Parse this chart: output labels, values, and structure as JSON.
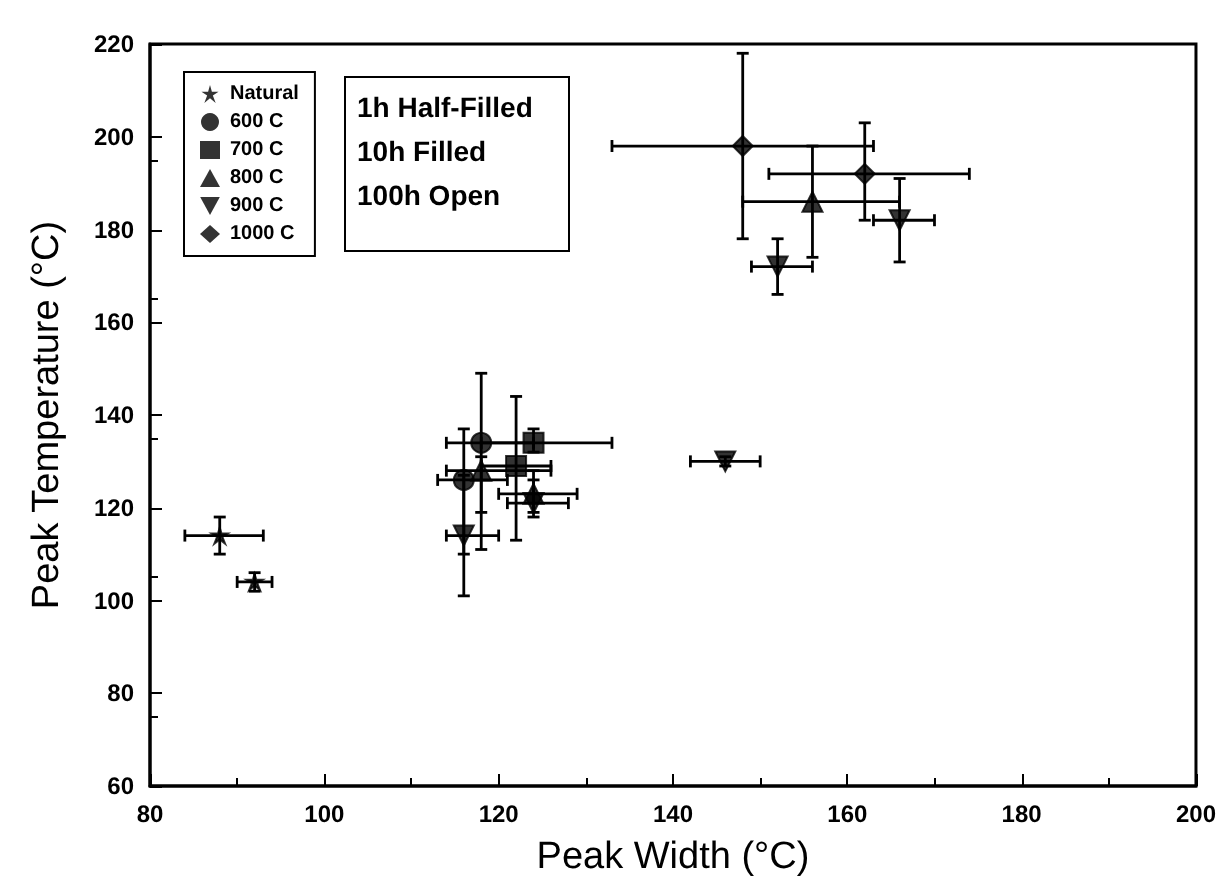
{
  "chart_data": {
    "type": "scatter",
    "xlabel": "Peak Width (°C)",
    "ylabel": "Peak Temperature (°C)",
    "xlim": [
      80,
      200
    ],
    "xticks": [
      80,
      100,
      120,
      140,
      160,
      180,
      200
    ],
    "ylim": [
      60,
      220
    ],
    "yticks": [
      60,
      80,
      100,
      120,
      140,
      160,
      180,
      200,
      220
    ],
    "grid": false,
    "legend": "top left",
    "annotations": [
      "1h Half-Filled",
      "10h Filled",
      "100h Open"
    ],
    "series": [
      {
        "name": "Natural",
        "color": "#000000",
        "marker": "star",
        "x": [
          88,
          92
        ],
        "values": [
          114,
          104
        ],
        "errors": [
          [
            110,
            118
          ],
          [
            102,
            106
          ]
        ],
        "xerrors": [
          [
            84,
            93
          ],
          [
            90,
            94
          ]
        ]
      },
      {
        "name": "600 C",
        "color": "#000000",
        "marker": "circle",
        "x": [
          118,
          116
        ],
        "values": [
          134,
          126
        ],
        "errors": [
          [
            119,
            149
          ],
          [
            110,
            137
          ]
        ],
        "xerrors": [
          [
            114,
            124
          ],
          [
            113,
            121
          ]
        ]
      },
      {
        "name": "700 C",
        "color": "#000000",
        "marker": "square",
        "x": [
          124,
          122
        ],
        "values": [
          134,
          129
        ],
        "errors": [
          [
            132,
            137
          ],
          [
            113,
            144
          ]
        ],
        "xerrors": [
          [
            118,
            133
          ],
          [
            118,
            126
          ]
        ]
      },
      {
        "name": "800 C",
        "color": "#000000",
        "marker": "triangle",
        "x": [
          118,
          124,
          156
        ],
        "values": [
          128,
          123,
          186
        ],
        "errors": [
          [
            111,
            131
          ],
          [
            118,
            128
          ],
          [
            174,
            198
          ]
        ],
        "xerrors": [
          [
            114,
            126
          ],
          [
            120,
            129
          ],
          [
            148,
            166
          ]
        ]
      },
      {
        "name": "900 C",
        "color": "#000000",
        "marker": "triangle-down",
        "x": [
          116,
          124,
          146,
          152,
          166
        ],
        "values": [
          114,
          121,
          130,
          172,
          182
        ],
        "errors": [
          [
            101,
            127
          ],
          [
            119,
            126
          ],
          [
            129,
            131
          ],
          [
            166,
            178
          ],
          [
            173,
            191
          ]
        ],
        "xerrors": [
          [
            114,
            120
          ],
          [
            121,
            128
          ],
          [
            142,
            150
          ],
          [
            149,
            156
          ],
          [
            163,
            170
          ]
        ]
      },
      {
        "name": "1000 C",
        "color": "#000000",
        "marker": "diamond",
        "x": [
          148,
          162
        ],
        "values": [
          198,
          192
        ],
        "errors": [
          [
            178,
            218
          ],
          [
            182,
            203
          ]
        ],
        "xerrors": [
          [
            133,
            163
          ],
          [
            151,
            174
          ]
        ]
      }
    ]
  }
}
